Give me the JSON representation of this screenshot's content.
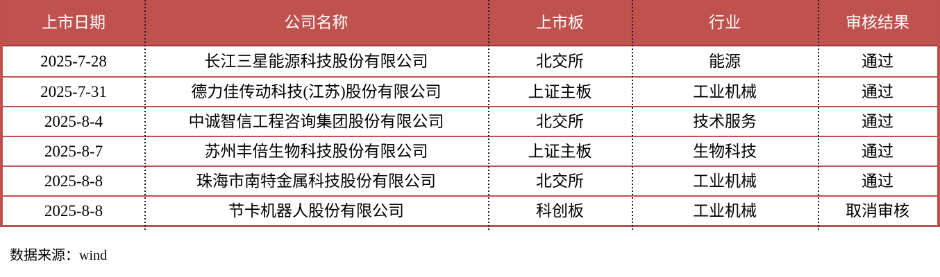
{
  "chart_data": {
    "type": "table",
    "title": "",
    "columns": [
      "上市日期",
      "公司名称",
      "上市板",
      "行业",
      "审核结果"
    ],
    "rows": [
      [
        "2025-7-28",
        "长江三星能源科技股份有限公司",
        "北交所",
        "能源",
        "通过"
      ],
      [
        "2025-7-31",
        "德力佳传动科技(江苏)股份有限公司",
        "上证主板",
        "工业机械",
        "通过"
      ],
      [
        "2025-8-4",
        "中诚智信工程咨询集团股份有限公司",
        "北交所",
        "技术服务",
        "通过"
      ],
      [
        "2025-8-7",
        "苏州丰倍生物科技股份有限公司",
        "上证主板",
        "生物科技",
        "通过"
      ],
      [
        "2025-8-8",
        "珠海市南特金属科技股份有限公司",
        "北交所",
        "工业机械",
        "通过"
      ],
      [
        "2025-8-8",
        "节卡机器人股份有限公司",
        "科创板",
        "工业机械",
        "取消审核"
      ]
    ],
    "source_note": "数据来源：wind",
    "layout_hints": {
      "header_style": "red background, white text",
      "row_separators": "solid red horizontal lines",
      "column_separators": "black dotted vertical lines",
      "grid": "on"
    }
  },
  "colors": {
    "header_bg": "#bf514e",
    "header_text": "#ffffff",
    "border_red": "#c0504d",
    "header_bottom_border": "#a03d3a",
    "divider_dots": "#1a1a1a",
    "body_text": "#000000"
  }
}
